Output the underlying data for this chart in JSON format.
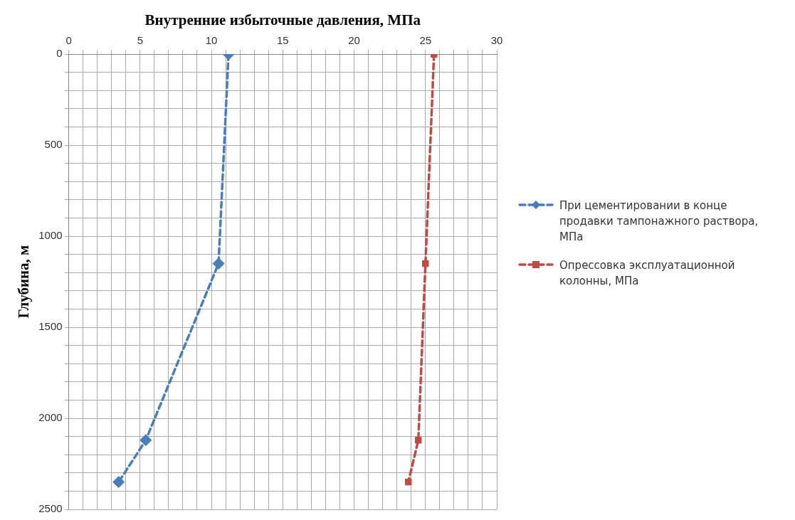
{
  "chart_data": {
    "type": "line",
    "xlabel": "Внутренние избыточные давления, МПа",
    "ylabel": "Глубина, м",
    "series": [
      {
        "name": "При цементировании в конце продавки тампонажного раствора, МПа",
        "color": "#4a7ebb",
        "marker": "diamond",
        "x": [
          11.2,
          10.5,
          5.4,
          3.5
        ],
        "values": [
          0,
          1150,
          2120,
          2350
        ]
      },
      {
        "name": "Опрессовка эксплуатационной колонны, МПа",
        "color": "#be4b48",
        "marker": "square",
        "x": [
          25.6,
          25.0,
          24.5,
          23.8
        ],
        "values": [
          0,
          1150,
          2120,
          2350
        ]
      }
    ],
    "line_style": "dashed",
    "xlim": [
      0,
      30
    ],
    "xticks": [
      0,
      {
        "value": 1,
        "label": null
      },
      {
        "value": 2,
        "label": null
      },
      {
        "value": 3,
        "label": null
      },
      {
        "value": 4,
        "label": null
      },
      5,
      {
        "value": 6,
        "label": null
      },
      {
        "value": 7,
        "label": null
      },
      {
        "value": 8,
        "label": null
      },
      {
        "value": 9,
        "label": null
      },
      10,
      {
        "value": 11,
        "label": null
      },
      {
        "value": 12,
        "label": null
      },
      {
        "value": 13,
        "label": null
      },
      {
        "value": 14,
        "label": null
      },
      15,
      {
        "value": 16,
        "label": null
      },
      {
        "value": 17,
        "label": null
      },
      {
        "value": 18,
        "label": null
      },
      {
        "value": 19,
        "label": null
      },
      20,
      {
        "value": 21,
        "label": null
      },
      {
        "value": 22,
        "label": null
      },
      {
        "value": 23,
        "label": null
      },
      {
        "value": 24,
        "label": null
      },
      25,
      {
        "value": 26,
        "label": null
      },
      {
        "value": 27,
        "label": null
      },
      {
        "value": 28,
        "label": null
      },
      {
        "value": 29,
        "label": null
      },
      30
    ],
    "ylim": [
      2500,
      0
    ],
    "yticks": [
      0,
      {
        "value": 100,
        "label": null
      },
      {
        "value": 200,
        "label": null
      },
      {
        "value": 300,
        "label": null
      },
      {
        "value": 400,
        "label": null
      },
      500,
      {
        "value": 600,
        "label": null
      },
      {
        "value": 700,
        "label": null
      },
      {
        "value": 800,
        "label": null
      },
      {
        "value": 900,
        "label": null
      },
      1000,
      {
        "value": 1100,
        "label": null
      },
      {
        "value": 1200,
        "label": null
      },
      {
        "value": 1300,
        "label": null
      },
      {
        "value": 1400,
        "label": null
      },
      1500,
      {
        "value": 1600,
        "label": null
      },
      {
        "value": 1700,
        "label": null
      },
      {
        "value": 1800,
        "label": null
      },
      {
        "value": 1900,
        "label": null
      },
      2000,
      {
        "value": 2100,
        "label": null
      },
      {
        "value": 2200,
        "label": null
      },
      {
        "value": 2300,
        "label": null
      },
      {
        "value": 2400,
        "label": null
      },
      2500
    ],
    "grid": true,
    "legend": "right"
  }
}
